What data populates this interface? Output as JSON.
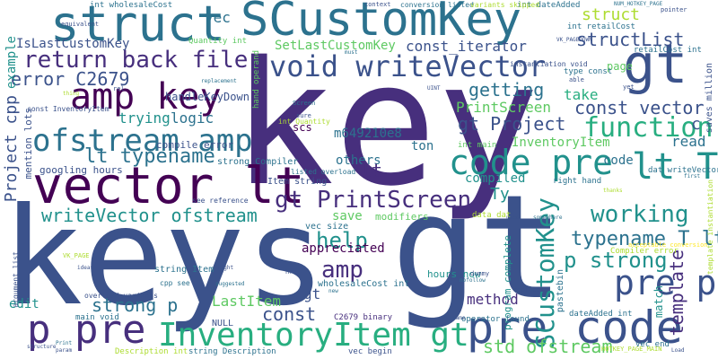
{
  "palette": {
    "purple": "#440154",
    "indigo": "#472f7d",
    "blue": "#3b528b",
    "steel": "#2c728e",
    "teal": "#21918c",
    "green": "#28ae80",
    "lime": "#5ec962",
    "yellowgreen": "#addc30",
    "yellow": "#fde725"
  },
  "words": {
    "key": "key",
    "keys": "keys",
    "gt_big": "gt",
    "gt_top": "gt",
    "struct_top": "struct",
    "scustomkey_top": "SCustomKey",
    "vector_lt": "vector lt",
    "pre_code": "pre code",
    "p_pre": "p pre",
    "inventoryitem_gt": "InventoryItem gt",
    "amp_key": "amp key",
    "ofstream_amp": "ofstream amp",
    "void_writevector": "void writeVector",
    "return_back_file": "return back file",
    "code_pre": "code pre",
    "function": "function",
    "lt_t": "lt T",
    "pre_p": "pre p",
    "gt_printscreen": "gt PrintScreen",
    "writevector_ofstream": "writeVector ofstream",
    "scustomkey_vert": "SCustomKey",
    "working": "working",
    "typename_t_lt": "typename T lt",
    "p_strong": "p strong",
    "amp_mid": "amp",
    "lt_typename": "lt typename",
    "help": "help",
    "strong_p": "strong p",
    "getting": "getting",
    "error_c2679": "error C2679",
    "struct_right": "struct",
    "structlist": "structList",
    "const_vector": "const vector",
    "std_ofstream": "std ofstream",
    "template": "template",
    "lastitem": "LastItem",
    "const_mid": "const",
    "method": "method",
    "save": "save",
    "appreciated": "appreciated",
    "trying": "trying",
    "logic": "logic",
    "gt_project": "gt Project",
    "printscreen": "PrintScreen",
    "m649210e8": "m649210e8",
    "ton": "ton",
    "others": "others",
    "scs": "scs",
    "compiled": "compiled",
    "inventoryitem_small": "InventoryItem",
    "read": "read",
    "code_right": "code",
    "take": "take",
    "const_iterator": "const_iterator",
    "setlastcustomkey": "SetLastCustomKey",
    "islastcustomkey": "IsLastCustomKey",
    "vec": "vec",
    "handlekeydown": "handleKeyDown",
    "project_cpp": "Project cpp",
    "example": "example",
    "edit": "edit",
    "gt_low": "gt",
    "ty": "Ty",
    "lt_mid": "lt",
    "c_letter": "c",
    "page": "page",
    "match": "match",
    "googling_hours": "googling hours",
    "strong_compiler": "strong Compiler",
    "item_string": "Item string",
    "compile_error": "compile error",
    "vec_size": "vec size",
    "modifiers": "modifiers",
    "data_dat": "data dat",
    "string_item": "string Item",
    "hours_now": "hours now",
    "program_complete": "program complete",
    "pastebin": "pastebin",
    "wholesalecost_int": "wholesaleCost int",
    "null": "NULL",
    "c2679_binary": "C2679 binary",
    "operator_found": "operator found",
    "dateadded_int": "dateAdded int",
    "vec_begin": "vec begin",
    "vec_end": "vec end",
    "string_description": "string Description",
    "description_int": "Description int",
    "main_void": "main void",
    "overload_variants": "overload variants",
    "right_hand": "right hand",
    "int_main": "int main",
    "mention_lots": "mention lots",
    "quantity_int": "Quantity int",
    "int_wholesalecost": "int wholesaleCost",
    "int_dateadded": "int dateAdded",
    "int_retailcost": "int retailCost",
    "retailcost_int": "retailCost int",
    "conversion_listed": "conversion listed",
    "variants_skipped": "variants skipped",
    "type_const": "type const",
    "dat_writevector": "dat writeVector",
    "saves_million": "saves million",
    "hand_operand": "hand operand",
    "const_inventoryitem": "const InventoryItem",
    "listed_overload": "listed overload",
    "see_reference": "see reference",
    "compiler_error": "Compiler error",
    "acceptable_conversion": "acceptable conversion",
    "instantiation_void": "instantiation void",
    "template_instantiation": "template instantiation",
    "int_quantity": "int Quantity",
    "hotkey_page_main": "HOTKEY_PAGE_MAIN",
    "num_hotkey_page": "NUM_HOTKEY_PAGE",
    "vk_pagedown": "VK_PAGEDOWN",
    "vk_page": "VK_PAGE",
    "cpp_see": "cpp see",
    "argument_list": "argument list",
    "context": "context",
    "equivalent": "equivalent",
    "pointer": "pointer",
    "screen": "Screen",
    "sure": "sure",
    "yet": "yet",
    "able": "able",
    "dummy": "dummy",
    "nofollow": "nofollow",
    "href": "href",
    "replaced": "replaced",
    "used": "used",
    "somewhere": "somewhere",
    "rel": "rel",
    "thing": "thing",
    "param": "param",
    "name": "name",
    "ideas": "ideas",
    "suggested": "suggested",
    "right": "right",
    "new": "new",
    "first": "first",
    "load": "Load",
    "print": "Print",
    "structure": "structure",
    "thanks": "thanks",
    "must": "must",
    "uint": "UINT",
    "replacement": "replacement"
  }
}
